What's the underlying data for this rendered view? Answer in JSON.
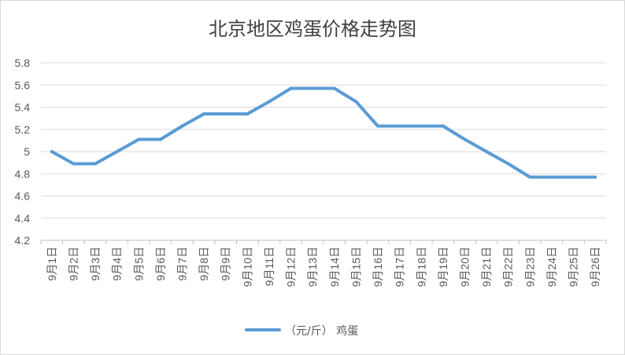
{
  "chart_data": {
    "type": "line",
    "title": "北京地区鸡蛋价格走势图",
    "categories": [
      "9月1日",
      "9月2日",
      "9月3日",
      "9月4日",
      "9月5日",
      "9月6日",
      "9月7日",
      "9月8日",
      "9月9日",
      "9月10日",
      "9月11日",
      "9月12日",
      "9月13日",
      "9月14日",
      "9月15日",
      "9月16日",
      "9月17日",
      "9月18日",
      "9月19日",
      "9月20日",
      "9月21日",
      "9月22日",
      "9月23日",
      "9月24日",
      "9月25日",
      "9月26日"
    ],
    "series": [
      {
        "name": "（元/斤） 鸡蛋",
        "values": [
          5.0,
          4.89,
          4.89,
          5.0,
          5.11,
          5.11,
          5.23,
          5.34,
          5.34,
          5.34,
          5.45,
          5.57,
          5.57,
          5.57,
          5.45,
          5.23,
          5.23,
          5.23,
          5.23,
          5.11,
          5.0,
          4.89,
          4.77,
          4.77,
          4.77,
          4.77
        ],
        "color": "#5b9bd5"
      }
    ],
    "yticks": [
      "4.2",
      "4.4",
      "4.6",
      "4.8",
      "5",
      "5.2",
      "5.4",
      "5.6",
      "5.8"
    ],
    "ylim": [
      4.2,
      5.8
    ],
    "grid": true,
    "legend": "bottom"
  }
}
